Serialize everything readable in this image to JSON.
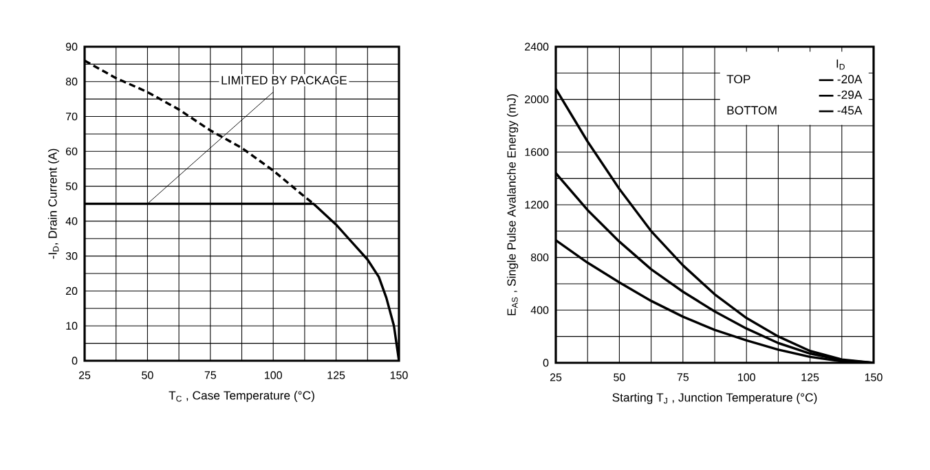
{
  "chart_data": [
    {
      "type": "line",
      "xlabel": "T$_{C}$ , Case Temperature (°C)",
      "ylabel": "-I$_{D}$,  Drain Current  (A)",
      "xlim": [
        25,
        150
      ],
      "ylim": [
        0,
        90
      ],
      "xticks": [
        25,
        {
          "value": 37.5,
          "label": null
        },
        50,
        {
          "value": 62.5,
          "label": null
        },
        75,
        {
          "value": 87.5,
          "label": null
        },
        100,
        {
          "value": 112.5,
          "label": null
        },
        125,
        {
          "value": 137.5,
          "label": null
        },
        150
      ],
      "yticks": [
        0,
        {
          "value": 5,
          "label": null
        },
        10,
        {
          "value": 15,
          "label": null
        },
        20,
        {
          "value": 25,
          "label": null
        },
        30,
        {
          "value": 35,
          "label": null
        },
        40,
        {
          "value": 45,
          "label": null
        },
        50,
        {
          "value": 55,
          "label": null
        },
        60,
        {
          "value": 65,
          "label": null
        },
        70,
        {
          "value": 75,
          "label": null
        },
        80,
        {
          "value": 85,
          "label": null
        },
        90
      ],
      "grid": true,
      "marker": "none",
      "series": [
        {
          "color": "#000000",
          "line_style": "dashed",
          "x": [
            25,
            37.5,
            50,
            62.5,
            75,
            87.5,
            100,
            112.5,
            116
          ],
          "values": [
            86,
            81,
            77,
            72,
            66,
            61,
            54.5,
            47,
            45
          ]
        },
        {
          "color": "#000000",
          "line_style": "solid",
          "x": [
            25,
            50,
            75,
            100,
            116,
            125,
            137.5,
            142,
            145,
            148,
            150
          ],
          "values": [
            45,
            45,
            45,
            45,
            45,
            39,
            29,
            24,
            18,
            10,
            0
          ]
        }
      ],
      "annotations": [
        {
          "text": "LIMITED BY PACKAGE",
          "x": 50,
          "y": 45
        }
      ]
    },
    {
      "type": "line",
      "xlabel": "Starting T$_{J}$ , Junction Temperature (°C)",
      "ylabel": "E$_{AS}$ , Single Pulse Avalanche Energy (mJ)",
      "xlim": [
        25,
        150
      ],
      "ylim": [
        0,
        2400
      ],
      "xticks": [
        25,
        {
          "value": 37.5,
          "label": null
        },
        50,
        {
          "value": 62.5,
          "label": null
        },
        75,
        {
          "value": 87.5,
          "label": null
        },
        100,
        {
          "value": 112.5,
          "label": null
        },
        125,
        {
          "value": 137.5,
          "label": null
        },
        150
      ],
      "yticks": [
        0,
        {
          "value": 200,
          "label": null
        },
        400,
        {
          "value": 600,
          "label": null
        },
        800,
        {
          "value": 1000,
          "label": null
        },
        1200,
        {
          "value": 1400,
          "label": null
        },
        1600,
        {
          "value": 1800,
          "label": null
        },
        2000,
        {
          "value": 2200,
          "label": null
        },
        2400
      ],
      "grid": true,
      "marker": "none",
      "legend": "top right",
      "legend_title": "I$_{D}$",
      "x": [
        25,
        37.5,
        50,
        62.5,
        75,
        87.5,
        100,
        112.5,
        125,
        137.5,
        150
      ],
      "series": [
        {
          "name": "-20A",
          "color": "#000000",
          "values": [
            2080,
            1680,
            1320,
            1000,
            740,
            520,
            340,
            200,
            90,
            25,
            0
          ]
        },
        {
          "name": "-29A",
          "color": "#000000",
          "values": [
            1440,
            1160,
            920,
            710,
            540,
            390,
            260,
            150,
            70,
            20,
            0
          ]
        },
        {
          "name": "-45A",
          "color": "#000000",
          "values": [
            930,
            760,
            610,
            470,
            350,
            250,
            170,
            100,
            45,
            12,
            0
          ]
        }
      ],
      "annotations": [
        "TOP",
        "BOTTOM"
      ]
    }
  ]
}
